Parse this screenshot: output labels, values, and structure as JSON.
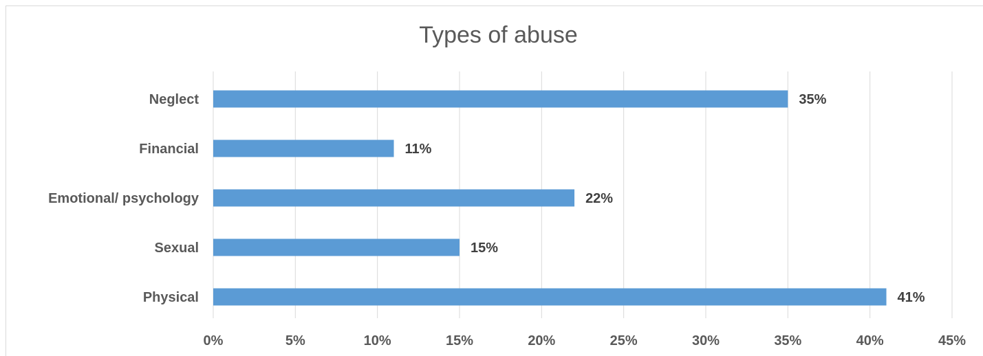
{
  "chart_data": {
    "type": "bar",
    "orientation": "horizontal",
    "title": "Types of abuse",
    "xlabel": "",
    "ylabel": "",
    "categories": [
      "Neglect",
      "Financial",
      "Emotional/ psychology",
      "Sexual",
      "Physical"
    ],
    "values": [
      35,
      11,
      22,
      15,
      41
    ],
    "data_labels": [
      "35%",
      "11%",
      "22%",
      "15%",
      "41%"
    ],
    "xlim": [
      0,
      45
    ],
    "x_ticks": [
      0,
      5,
      10,
      15,
      20,
      25,
      30,
      35,
      40,
      45
    ],
    "x_tick_labels": [
      "0%",
      "5%",
      "10%",
      "15%",
      "20%",
      "25%",
      "30%",
      "35%",
      "40%",
      "45%"
    ],
    "grid": "vertical",
    "legend": "none",
    "bar_color": "#5b9bd5"
  }
}
